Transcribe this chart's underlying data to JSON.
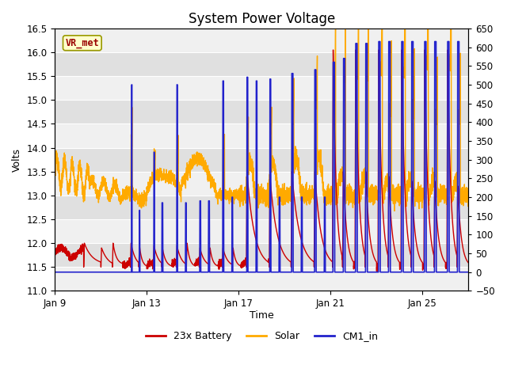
{
  "title": "System Power Voltage",
  "xlabel": "Time",
  "ylabel": "Volts",
  "ylim_left": [
    11.0,
    16.5
  ],
  "ylim_right": [
    -50,
    650
  ],
  "yticks_left": [
    11.0,
    11.5,
    12.0,
    12.5,
    13.0,
    13.5,
    14.0,
    14.5,
    15.0,
    15.5,
    16.0,
    16.5
  ],
  "yticks_right": [
    -50,
    0,
    50,
    100,
    150,
    200,
    250,
    300,
    350,
    400,
    450,
    500,
    550,
    600,
    650
  ],
  "xtick_positions": [
    0,
    4,
    8,
    12,
    16
  ],
  "xtick_labels": [
    "Jan 9",
    "Jan 13",
    "Jan 17",
    "Jan 21",
    "Jan 25"
  ],
  "legend_labels": [
    "23x Battery",
    "Solar",
    "CM1_in"
  ],
  "legend_colors": [
    "#cc0000",
    "#ffaa00",
    "#2222cc"
  ],
  "line_colors": {
    "battery": "#cc0000",
    "solar": "#ffaa00",
    "cm1": "#2222cc"
  },
  "line_widths": {
    "battery": 1.0,
    "solar": 1.0,
    "cm1": 1.2
  },
  "bg_color": "#e0e0e0",
  "annotation_text": "VR_met",
  "annotation_color": "#990000",
  "annotation_bg": "#ffffcc",
  "annotation_border": "#999900",
  "title_fontsize": 12,
  "axis_fontsize": 9,
  "legend_fontsize": 9,
  "total_days": 18,
  "points_per_day": 288
}
